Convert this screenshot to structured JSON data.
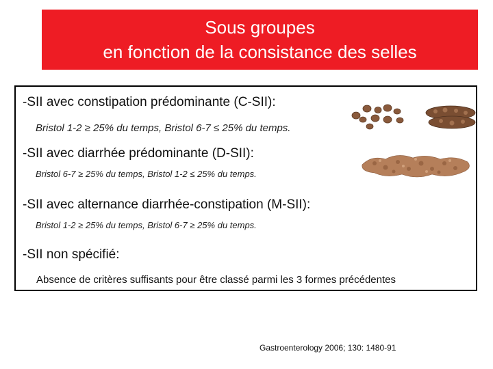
{
  "title": {
    "line1": "Sous groupes",
    "line2": "en fonction de la consistance des selles"
  },
  "items": [
    {
      "heading": "-SII avec constipation prédominante (C-SII):",
      "criteria": "Bristol 1-2 ≥ 25% du temps, Bristol 6-7 ≤ 25% du temps."
    },
    {
      "heading": "-SII avec diarrhée prédominante (D-SII):",
      "criteria": "Bristol 6-7 ≥ 25% du temps, Bristol 1-2 ≤ 25% du temps."
    },
    {
      "heading": "-SII avec alternance diarrhée-constipation (M-SII):",
      "criteria": "Bristol 1-2 ≥ 25% du temps, Bristol 6-7 ≥ 25% du temps."
    },
    {
      "heading": "-SII non spécifié:",
      "criteria": "Absence de critères suffisants pour être classé parmi les 3 formes précédentes"
    }
  ],
  "images": {
    "constipation": "hard-stool-illustration",
    "diarrhea": "loose-stool-illustration"
  },
  "citation": "Gastroenterology 2006; 130: 1480-91",
  "colors": {
    "title_background": "#ee1c24",
    "title_text": "#ffffff",
    "border": "#000000"
  }
}
